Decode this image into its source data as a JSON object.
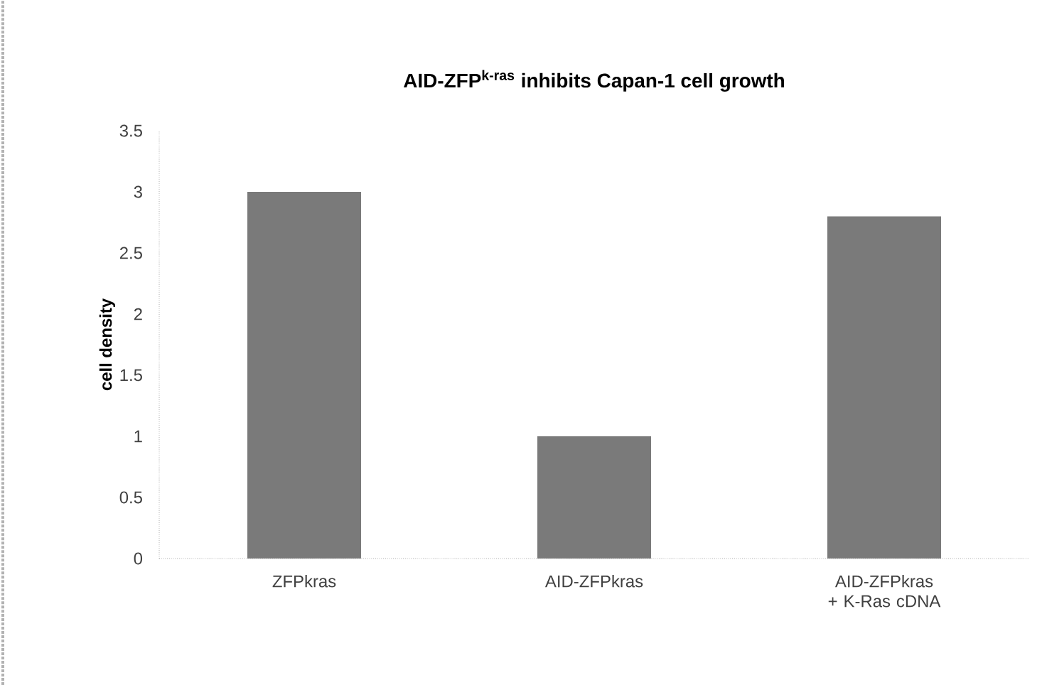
{
  "chart_data": {
    "type": "bar",
    "title": "**AID-ZFP$^{k-ras}$ inhibits  Capan-1 cell growth**",
    "ylabel": "cell density",
    "categories": [
      "ZFPkras",
      "AID-ZFPkras",
      "AID-ZFPkras + K-Ras cDNA"
    ],
    "values": [
      3.0,
      1.0,
      2.8
    ],
    "color": "#7a7a7a",
    "ylim": [
      0,
      3.5
    ],
    "yticks": [
      0,
      0.5,
      1,
      1.5,
      2,
      2.5,
      3,
      3.5
    ],
    "grid": false
  }
}
